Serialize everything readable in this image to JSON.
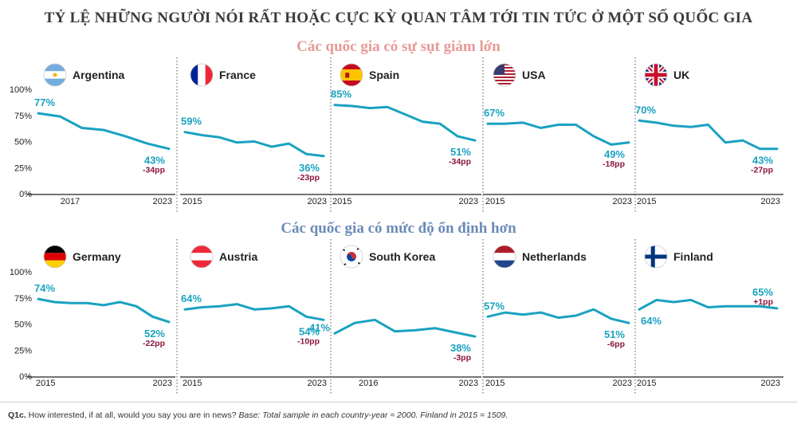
{
  "title": "TỶ LỆ NHỮNG NGƯỜI NÓI RẤT HOẶC CỰC KỲ QUAN TÂM TỚI TIN TỨC Ở MỘT SỐ QUỐC GIA",
  "section_titles": [
    "Các quốc gia có sự sụt giảm lớn",
    "Các quốc gia có mức độ ổn định hơn"
  ],
  "footnote": {
    "prefix": "Q1c.",
    "question": " How interested, if at all, would you say you are in news? ",
    "base": "Base: Total sample in each country-year ≈ 2000. Finland in 2015 = 1509."
  },
  "colors": {
    "line": "#1aa2c0",
    "start_label": "#1aa2c0",
    "change_label": "#8a1538",
    "axis": "#333333"
  },
  "chart_data": [
    {
      "type": "line",
      "country": "Argentina",
      "flag": "argentina-flag",
      "x_start": "2017",
      "x_end": "2023",
      "x": [
        2017,
        2018,
        2019,
        2020,
        2021,
        2022,
        2023
      ],
      "values": [
        77,
        74,
        63,
        61,
        55,
        48,
        43
      ],
      "start_label": "77%",
      "end_label": "43%",
      "change": "-34pp",
      "ylim": [
        0,
        100
      ],
      "yticks": [
        "100%",
        "75%",
        "50%",
        "25%",
        "0%"
      ]
    },
    {
      "type": "line",
      "country": "France",
      "flag": "france-flag",
      "x_start": "2015",
      "x_end": "2023",
      "x": [
        2015,
        2016,
        2017,
        2018,
        2019,
        2020,
        2021,
        2022,
        2023
      ],
      "values": [
        59,
        56,
        54,
        49,
        50,
        45,
        48,
        38,
        36
      ],
      "start_label": "59%",
      "end_label": "36%",
      "change": "-23pp",
      "ylim": [
        0,
        100
      ]
    },
    {
      "type": "line",
      "country": "Spain",
      "flag": "spain-flag",
      "x_start": "2015",
      "x_end": "2023",
      "x": [
        2015,
        2016,
        2017,
        2018,
        2019,
        2020,
        2021,
        2022,
        2023
      ],
      "values": [
        85,
        84,
        82,
        83,
        76,
        69,
        67,
        55,
        51
      ],
      "start_label": "85%",
      "end_label": "51%",
      "change": "-34pp",
      "ylim": [
        0,
        100
      ]
    },
    {
      "type": "line",
      "country": "USA",
      "flag": "usa-flag",
      "x_start": "2015",
      "x_end": "2023",
      "x": [
        2015,
        2016,
        2017,
        2018,
        2019,
        2020,
        2021,
        2022,
        2023
      ],
      "values": [
        67,
        67,
        68,
        63,
        66,
        66,
        55,
        47,
        49
      ],
      "start_label": "67%",
      "end_label": "49%",
      "change": "-18pp",
      "ylim": [
        0,
        100
      ]
    },
    {
      "type": "line",
      "country": "UK",
      "flag": "uk-flag",
      "x_start": "2015",
      "x_end": "2023",
      "x": [
        2015,
        2016,
        2017,
        2018,
        2019,
        2020,
        2021,
        2022,
        2023
      ],
      "values": [
        70,
        68,
        65,
        64,
        66,
        49,
        51,
        43,
        43
      ],
      "start_label": "70%",
      "end_label": "43%",
      "change": "-27pp",
      "ylim": [
        0,
        100
      ]
    },
    {
      "type": "line",
      "country": "Germany",
      "flag": "germany-flag",
      "x_start": "2015",
      "x_end": "2023",
      "x": [
        2015,
        2016,
        2017,
        2018,
        2019,
        2020,
        2021,
        2022,
        2023
      ],
      "values": [
        74,
        71,
        70,
        70,
        68,
        71,
        67,
        57,
        52
      ],
      "start_label": "74%",
      "end_label": "52%",
      "change": "-22pp",
      "ylim": [
        0,
        100
      ],
      "yticks": [
        "100%",
        "75%",
        "50%",
        "25%",
        "0%"
      ]
    },
    {
      "type": "line",
      "country": "Austria",
      "flag": "austria-flag",
      "x_start": "2015",
      "x_end": "2023",
      "x": [
        2015,
        2016,
        2017,
        2018,
        2019,
        2020,
        2021,
        2022,
        2023
      ],
      "values": [
        64,
        66,
        67,
        69,
        64,
        65,
        67,
        57,
        54
      ],
      "start_label": "64%",
      "end_label": "54%",
      "change": "-10pp",
      "ylim": [
        0,
        100
      ]
    },
    {
      "type": "line",
      "country": "South Korea",
      "flag": "south-korea-flag",
      "x_start": "2016",
      "x_end": "2023",
      "x": [
        2016,
        2017,
        2018,
        2019,
        2020,
        2021,
        2022,
        2023
      ],
      "values": [
        41,
        51,
        54,
        43,
        44,
        46,
        42,
        38
      ],
      "start_label": "41%",
      "end_label": "38%",
      "change": "-3pp",
      "ylim": [
        0,
        100
      ]
    },
    {
      "type": "line",
      "country": "Netherlands",
      "flag": "netherlands-flag",
      "x_start": "2015",
      "x_end": "2023",
      "x": [
        2015,
        2016,
        2017,
        2018,
        2019,
        2020,
        2021,
        2022,
        2023
      ],
      "values": [
        57,
        61,
        59,
        61,
        56,
        58,
        64,
        55,
        51
      ],
      "start_label": "57%",
      "end_label": "51%",
      "change": "-6pp",
      "ylim": [
        0,
        100
      ]
    },
    {
      "type": "line",
      "country": "Finland",
      "flag": "finland-flag",
      "x_start": "2015",
      "x_end": "2023",
      "x": [
        2015,
        2016,
        2017,
        2018,
        2019,
        2020,
        2021,
        2022,
        2023
      ],
      "values": [
        64,
        73,
        71,
        73,
        66,
        67,
        67,
        67,
        65
      ],
      "start_label": "64%",
      "end_label": "65%",
      "change": "+1pp",
      "ylim": [
        0,
        100
      ]
    }
  ]
}
